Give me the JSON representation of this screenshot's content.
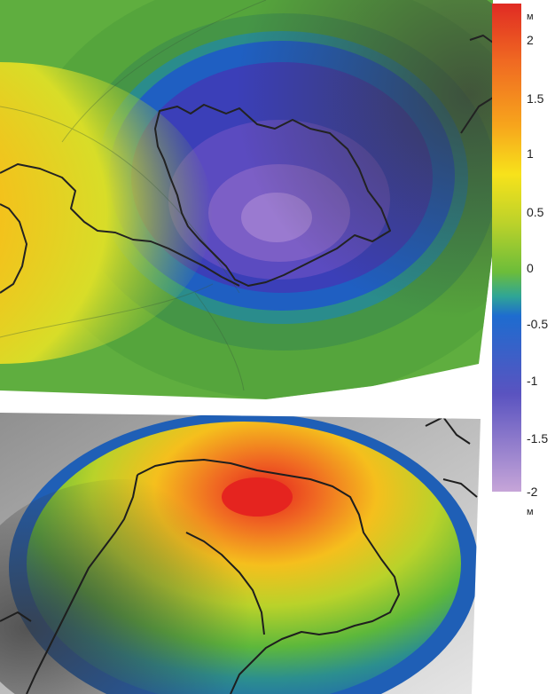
{
  "colorbar": {
    "unit_top": "м",
    "unit_bottom": "м",
    "ticks": [
      "2",
      "1.5",
      "1",
      "0.5",
      "0",
      "-0.5",
      "-1",
      "-1.5",
      "-2"
    ],
    "range": [
      -2,
      2.2
    ],
    "colors": [
      "#c8a6d6",
      "#8a6cc4",
      "#4b4fbf",
      "#2e6fd0",
      "#2fa596",
      "#6cbd3a",
      "#b7d22a",
      "#f2e21a",
      "#f7b21a",
      "#f07c22",
      "#e33325"
    ]
  },
  "panels": [
    {
      "name": "top",
      "min_value": -2.0,
      "max_value": 2.2
    },
    {
      "name": "bottom",
      "max_value": 2.2
    }
  ]
}
